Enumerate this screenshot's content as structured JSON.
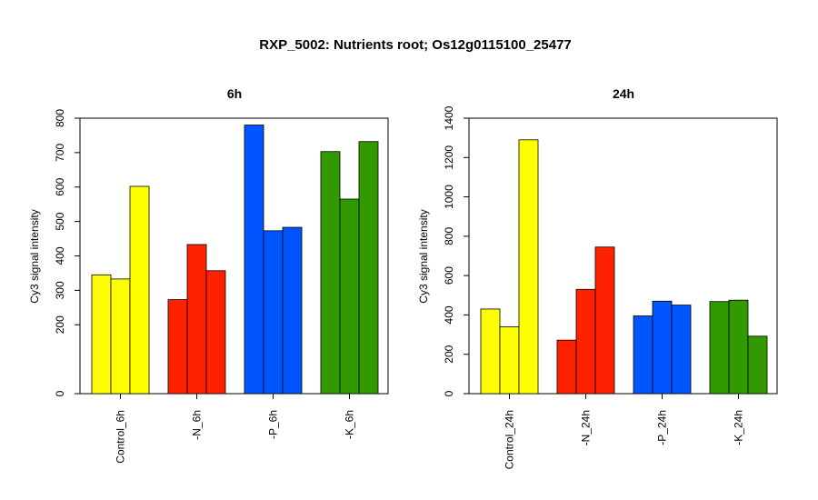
{
  "title": "RXP_5002: Nutrients root; Os12g0115100_25477",
  "colors": {
    "control": "#ffff00",
    "N": "#ff2200",
    "P": "#0055ff",
    "K": "#339900",
    "stroke": "#000000"
  },
  "chart_data": [
    {
      "type": "bar",
      "title": "6h",
      "ylabel": "Cy3 signal intensity",
      "ylim": [
        0,
        800
      ],
      "yticks": [
        "0",
        "200",
        "300",
        "400",
        "500",
        "600",
        "700",
        "800"
      ],
      "categories": [
        "Control_6h",
        "-N_6h",
        "-P_6h",
        "-K_6h"
      ],
      "groups": [
        {
          "category": "Control_6h",
          "color_key": "control",
          "values": [
            345,
            333,
            602
          ]
        },
        {
          "category": "-N_6h",
          "color_key": "N",
          "values": [
            273,
            433,
            357
          ]
        },
        {
          "category": "-P_6h",
          "color_key": "P",
          "values": [
            780,
            473,
            483
          ]
        },
        {
          "category": "-K_6h",
          "color_key": "K",
          "values": [
            703,
            565,
            732
          ]
        }
      ]
    },
    {
      "type": "bar",
      "title": "24h",
      "ylabel": "Cy3 signal intensity",
      "ylim": [
        0,
        1400
      ],
      "yticks": [
        "0",
        "200",
        "400",
        "600",
        "800",
        "1000",
        "1200",
        "1400"
      ],
      "categories": [
        "Control_24h",
        "-N_24h",
        "-P_24h",
        "-K_24h"
      ],
      "groups": [
        {
          "category": "Control_24h",
          "color_key": "control",
          "values": [
            430,
            340,
            1290
          ]
        },
        {
          "category": "-N_24h",
          "color_key": "N",
          "values": [
            272,
            530,
            745
          ]
        },
        {
          "category": "-P_24h",
          "color_key": "P",
          "values": [
            395,
            470,
            450
          ]
        },
        {
          "category": "-K_24h",
          "color_key": "K",
          "values": [
            468,
            475,
            292
          ]
        }
      ]
    }
  ]
}
